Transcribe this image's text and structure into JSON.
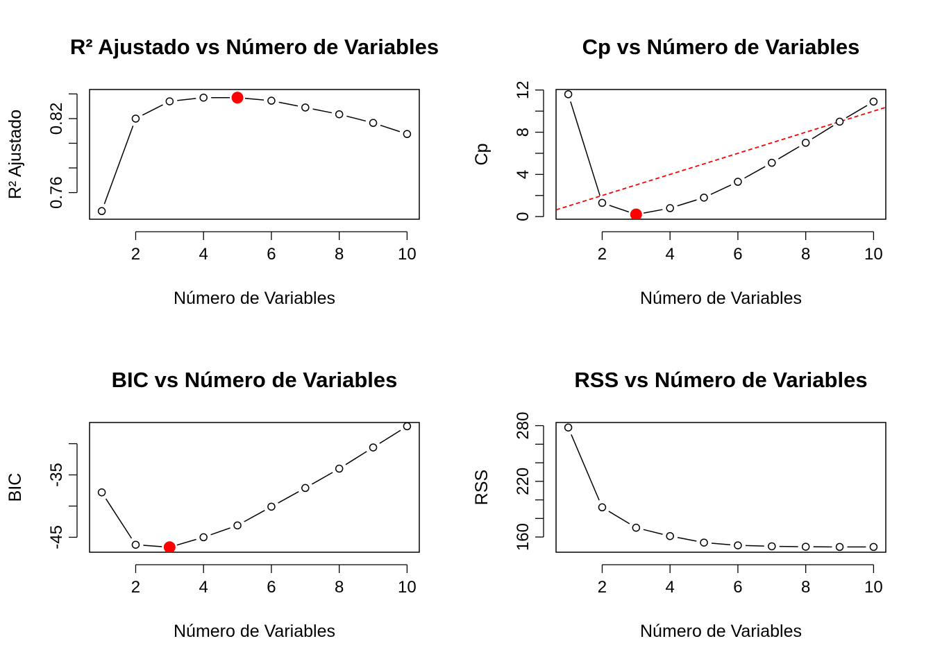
{
  "chart_data": [
    {
      "type": "line",
      "title": "R² Ajustado vs Número de Variables",
      "xlabel": "Número de Variables",
      "ylabel": "R² Ajustado",
      "x": [
        1,
        2,
        3,
        4,
        5,
        6,
        7,
        8,
        9,
        10
      ],
      "series": [
        {
          "values": [
            0.745,
            0.82,
            0.834,
            0.837,
            0.837,
            0.8345,
            0.829,
            0.8235,
            0.8165,
            0.8075
          ]
        }
      ],
      "highlight": {
        "x": 5,
        "y": 0.837,
        "color": "#ff0000"
      },
      "xlim": [
        0.64,
        10.36
      ],
      "ylim": [
        0.7384,
        0.8436
      ],
      "xticks": [
        2,
        4,
        6,
        8,
        10
      ],
      "yticks": [
        0.76,
        0.78,
        0.8,
        0.82,
        0.84
      ],
      "ytick_labels": [
        "0.76",
        "",
        "",
        "0.82",
        ""
      ],
      "grid": false
    },
    {
      "type": "line",
      "title": "Cp vs Número de Variables",
      "xlabel": "Número de Variables",
      "ylabel": "Cp",
      "x": [
        1,
        2,
        3,
        4,
        5,
        6,
        7,
        8,
        9,
        10
      ],
      "series": [
        {
          "values": [
            11.6,
            1.3,
            0.2,
            0.8,
            1.8,
            3.3,
            5.1,
            7.0,
            9.0,
            10.9
          ]
        }
      ],
      "highlight": {
        "x": 3,
        "y": 0.2,
        "color": "#ff0000"
      },
      "reference_line": {
        "intercept": 0,
        "slope": 1,
        "color": "#ff0000",
        "style": "dashed"
      },
      "xlim": [
        0.64,
        10.36
      ],
      "ylim": [
        -0.25,
        12.05
      ],
      "xticks": [
        2,
        4,
        6,
        8,
        10
      ],
      "yticks": [
        0,
        2,
        4,
        6,
        8,
        10,
        12
      ],
      "ytick_labels": [
        "0",
        "",
        "4",
        "",
        "8",
        "",
        "12"
      ],
      "grid": false
    },
    {
      "type": "line",
      "title": "BIC vs Número de Variables",
      "xlabel": "Número de Variables",
      "ylabel": "BIC",
      "x": [
        1,
        2,
        3,
        4,
        5,
        6,
        7,
        8,
        9,
        10
      ],
      "series": [
        {
          "values": [
            -37.8,
            -46.2,
            -46.6,
            -45.0,
            -43.1,
            -40.1,
            -37.1,
            -34.0,
            -30.6,
            -27.2
          ]
        }
      ],
      "highlight": {
        "x": 3,
        "y": -46.6,
        "color": "#ff0000"
      },
      "xlim": [
        0.64,
        10.36
      ],
      "ylim": [
        -47.4,
        -26.6
      ],
      "xticks": [
        2,
        4,
        6,
        8,
        10
      ],
      "yticks": [
        -45,
        -40,
        -35,
        -30
      ],
      "ytick_labels": [
        "-45",
        "",
        "-35",
        ""
      ],
      "grid": false
    },
    {
      "type": "line",
      "title": "RSS vs Número de Variables",
      "xlabel": "Número de Variables",
      "ylabel": "RSS",
      "x": [
        1,
        2,
        3,
        4,
        5,
        6,
        7,
        8,
        9,
        10
      ],
      "series": [
        {
          "values": [
            278,
            192,
            170,
            161,
            154,
            151,
            150,
            149.5,
            149.3,
            149.3
          ]
        }
      ],
      "xlim": [
        0.64,
        10.36
      ],
      "ylim": [
        143.6,
        283.4
      ],
      "xticks": [
        2,
        4,
        6,
        8,
        10
      ],
      "yticks": [
        160,
        180,
        200,
        220,
        240,
        260,
        280
      ],
      "ytick_labels": [
        "160",
        "",
        "",
        "220",
        "",
        "",
        "280"
      ],
      "grid": false
    }
  ]
}
